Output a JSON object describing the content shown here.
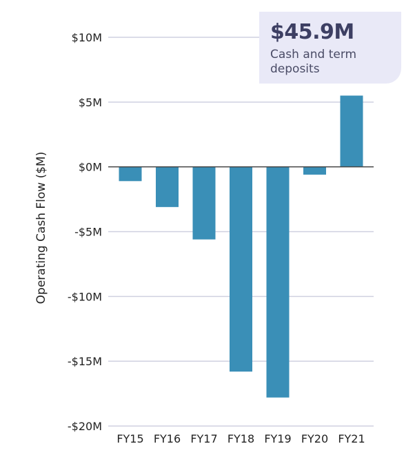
{
  "chart_data": {
    "type": "bar",
    "ylabel": "Operating Cash Flow ($M)",
    "categories": [
      "FY15",
      "FY16",
      "FY17",
      "FY18",
      "FY19",
      "FY20",
      "FY21"
    ],
    "values": [
      -1.1,
      -3.1,
      -5.6,
      -15.8,
      -17.8,
      -0.6,
      5.5
    ],
    "ylim": [
      -20,
      10
    ],
    "yticks": [
      10,
      5,
      0,
      -5,
      -10,
      -15,
      -20
    ],
    "ytick_labels": [
      "$10M",
      "$5M",
      "$0M",
      "-$5M",
      "-$10M",
      "-$15M",
      "-$20M"
    ],
    "grid": true,
    "bar_color": "#3a8fb7",
    "grid_color": "#cfd0e0"
  },
  "callout": {
    "value": "$45.9M",
    "label": "Cash and term deposits",
    "background": "#e9e9f7",
    "value_color": "#3d3f63"
  }
}
